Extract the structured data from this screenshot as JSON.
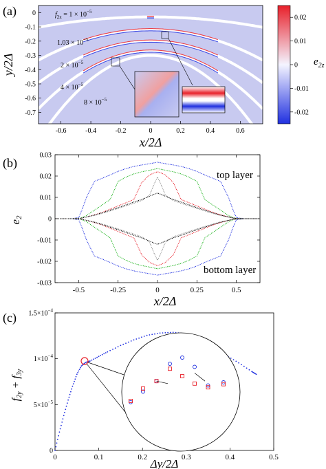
{
  "panels": {
    "a": {
      "label": "(a)",
      "colorbar_title_var": "e",
      "colorbar_title_sub": "2z",
      "curve_labels": [
        {
          "var": "f",
          "sub": "2x",
          "text": " = 1 × 10",
          "sup": "−5"
        },
        {
          "var": "",
          "sub": "",
          "text": "1.03 × 10",
          "sup": "−5"
        },
        {
          "var": "",
          "sub": "",
          "text": "2 × 10",
          "sup": "−5"
        },
        {
          "var": "",
          "sub": "",
          "text": "4 × 10",
          "sup": "−5"
        },
        {
          "var": "",
          "sub": "",
          "text": "8 × 10",
          "sup": "−5"
        }
      ]
    },
    "b": {
      "label": "(b)",
      "annotations": [
        "top layer",
        "bottom layer"
      ]
    },
    "c": {
      "label": "(c)"
    }
  },
  "colors": {
    "map_background": "#c8caf0",
    "red": "#e8202a",
    "blue": "#2030e0",
    "green": "#1db31d",
    "black": "#000000",
    "gray": "#888888"
  },
  "chart_data": [
    {
      "panel": "a",
      "type": "heatmap",
      "xlabel": "x/2Δ",
      "ylabel": "y/2Δ",
      "xlim": [
        -0.75,
        0.75
      ],
      "ylim": [
        -0.78,
        0.05
      ],
      "xticks": [
        "-0.6",
        "-0.4",
        "-0.2",
        "0",
        "0.2",
        "0.4",
        "0.6"
      ],
      "yticks": [
        "0",
        "-0.1",
        "-0.2",
        "-0.3",
        "-0.4",
        "-0.5",
        "-0.6",
        "-0.7"
      ],
      "colorbar": {
        "min": -0.025,
        "max": 0.025,
        "ticks": [
          "0.02",
          "0.01",
          "0",
          "-0.01",
          "-0.02"
        ]
      },
      "domain_walls": [
        {
          "f2x": "1 × 10^-5",
          "apex_y": -0.03,
          "curvature": 0.13
        },
        {
          "f2x": "1.03 × 10^-5",
          "apex_y": -0.12,
          "curvature": 0.38
        },
        {
          "f2x": "2 × 10^-5",
          "apex_y": -0.2,
          "curvature": 0.52
        },
        {
          "f2x": "4 × 10^-5",
          "apex_y": -0.27,
          "curvature": 0.72
        },
        {
          "f2x": "8 × 10^-5",
          "apex_y": -0.3,
          "curvature": 1.05
        }
      ]
    },
    {
      "panel": "b",
      "type": "line",
      "xlabel": "x/2Δ",
      "ylabel": "e2",
      "xlim": [
        -0.65,
        0.65
      ],
      "ylim": [
        -0.03,
        0.03
      ],
      "xticks": [
        "-0.5",
        "-0.25",
        "0",
        "0.25",
        "0.5"
      ],
      "yticks": [
        "0.03",
        "0.02",
        "0.01",
        "0",
        "-0.01",
        "-0.02",
        "-0.03"
      ],
      "x": [
        0,
        0.02,
        0.05,
        0.1,
        0.15,
        0.2,
        0.25,
        0.3,
        0.35,
        0.4,
        0.45,
        0.48,
        0.5,
        0.55,
        0.6,
        0.65
      ],
      "series": [
        {
          "color": "blue",
          "values": [
            0.0265,
            0.0262,
            0.0258,
            0.0252,
            0.0245,
            0.0235,
            0.0222,
            0.0205,
            0.019,
            0.0175,
            0.01,
            0.004,
            0.0005,
            0,
            0,
            0
          ]
        },
        {
          "color": "green",
          "values": [
            0.0235,
            0.0232,
            0.0227,
            0.022,
            0.021,
            0.0195,
            0.0175,
            0.009,
            0.0065,
            0.004,
            0.0015,
            0.0005,
            0.0002,
            0,
            0,
            0
          ]
        },
        {
          "color": "red",
          "values": [
            0.022,
            0.0215,
            0.0205,
            0.017,
            0.009,
            0.0075,
            0.006,
            0.0045,
            0.003,
            0.0018,
            0.0008,
            0.0003,
            0.0001,
            0,
            0,
            0
          ]
        },
        {
          "color": "gray",
          "values": [
            0.0195,
            0.0165,
            0.011,
            0.0085,
            0.0072,
            0.006,
            0.0048,
            0.0036,
            0.0025,
            0.0015,
            0.0007,
            0.0003,
            0.0001,
            0,
            0,
            0
          ]
        },
        {
          "color": "black",
          "values": [
            0.012,
            0.0115,
            0.0105,
            0.009,
            0.0078,
            0.0065,
            0.0052,
            0.004,
            0.0028,
            0.0017,
            0.0008,
            0.0003,
            0.0001,
            0,
            0,
            0
          ]
        }
      ],
      "symmetry": "even in x; bottom layer = -top layer"
    },
    {
      "panel": "c",
      "type": "scatter",
      "xlabel": "Δy/2Δ",
      "ylabel": "f2y + f3y",
      "xlim": [
        0,
        0.5
      ],
      "ylim": [
        0,
        0.00015
      ],
      "xticks": [
        "0",
        "0.1",
        "0.2",
        "0.3",
        "0.4",
        "0.5"
      ],
      "yticks": [
        {
          "mant": "0",
          "exp": ""
        },
        {
          "mant": "5×10",
          "exp": "−5"
        },
        {
          "mant": "1×10",
          "exp": "−4"
        },
        {
          "mant": "1.5×10",
          "exp": "−4"
        }
      ],
      "x": [
        0,
        0.01,
        0.02,
        0.03,
        0.04,
        0.05,
        0.06,
        0.07,
        0.08,
        0.1,
        0.12,
        0.15,
        0.18,
        0.21,
        0.24,
        0.27,
        0.3,
        0.33,
        0.36,
        0.39,
        0.42,
        0.45,
        0.46
      ],
      "series": [
        {
          "color": "blue",
          "values": [
            0,
            2e-05,
            3.8e-05,
            5.5e-05,
            7e-05,
            8.3e-05,
            9.2e-05,
            9.6e-05,
            9.75e-05,
            0.0001025,
            0.0001075,
            0.0001145,
            0.0001205,
            0.0001255,
            0.000128,
            0.0001288,
            0.000127,
            0.0001215,
            0.000113,
            0.000104,
            9.55e-05,
            8.6e-05,
            8.3e-05
          ]
        }
      ],
      "inset": {
        "red_squares": [
          [
            0,
            0.3
          ],
          [
            0.12,
            0.5
          ],
          [
            0.25,
            0.62
          ],
          [
            0.38,
            0.82
          ],
          [
            0.5,
            0.7
          ],
          [
            0.62,
            0.58
          ],
          [
            0.75,
            0.52
          ],
          [
            0.9,
            0.57
          ]
        ],
        "blue_circles": [
          [
            0,
            0.28
          ],
          [
            0.12,
            0.45
          ],
          [
            0.25,
            0.62
          ],
          [
            0.38,
            0.9
          ],
          [
            0.5,
            1.0
          ],
          [
            0.62,
            0.85
          ],
          [
            0.75,
            0.55
          ],
          [
            0.9,
            0.6
          ]
        ]
      }
    }
  ]
}
